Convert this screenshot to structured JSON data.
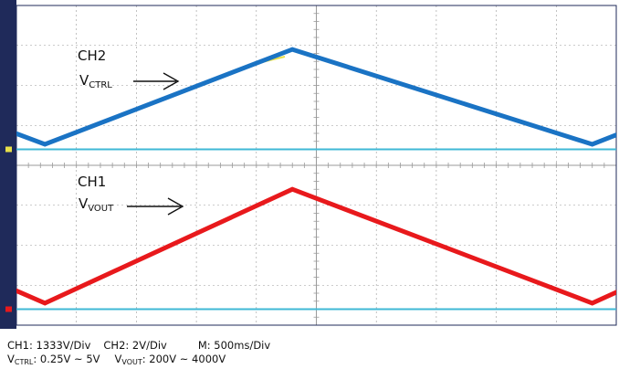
{
  "chart_data": {
    "type": "line",
    "divisions": {
      "x": 10,
      "y": 8
    },
    "x_per_div_ms": 500,
    "series": [
      {
        "name": "CH2",
        "signal": "V",
        "signal_sub": "CTRL",
        "color": "#1a73c4",
        "unit": "V",
        "per_div": 2,
        "ground_div": 4.4,
        "x_div": [
          -0.2,
          0.95,
          9.2,
          19.2,
          20.3
        ],
        "values": [
          0.9,
          0.25,
          5.0,
          0.25,
          0.9
        ]
      },
      {
        "name": "CH1",
        "signal": "V",
        "signal_sub": "VOUT",
        "color": "#e8191c",
        "unit": "V",
        "per_div": 1333,
        "ground_div": 0.4,
        "x_div": [
          -0.2,
          0.95,
          9.2,
          19.2,
          20.3
        ],
        "values": [
          700,
          200,
          4000,
          200,
          700
        ]
      }
    ]
  },
  "colors": {
    "baseline": "#3fb8d6",
    "frame": "#1f2a5a",
    "grid": "#9a9a9a",
    "yellow": "#e8e04a"
  },
  "readout": {
    "ch1": "CH1: 1333V/Div",
    "ch2": "CH2: 2V/Div",
    "m": "M: 500ms/Div",
    "vctrl_v": "V",
    "vctrl_sub": "CTRL",
    "vctrl_range": ": 0.25V ~ 5V",
    "vout_v": "V",
    "vout_sub": "VOUT",
    "vout_range": ": 200V ~ 4000V"
  }
}
